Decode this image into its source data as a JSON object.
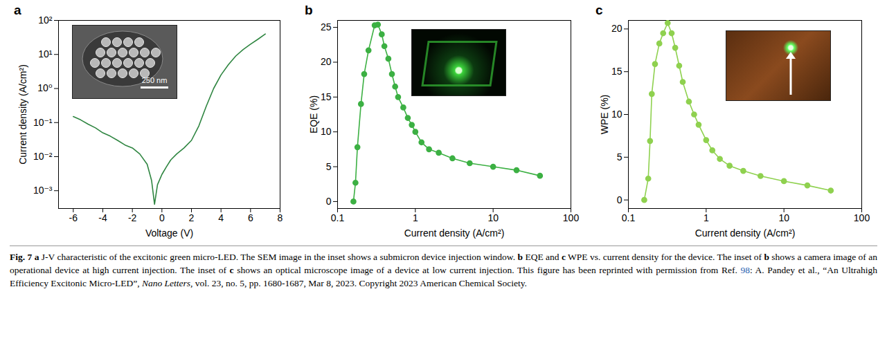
{
  "chart_data": [
    {
      "type": "line",
      "title": "a",
      "x_label": "Voltage (V)",
      "y_label": "Current density (A/cm²)",
      "x": [
        -6,
        -5.5,
        -5,
        -4.5,
        -4,
        -3.5,
        -3,
        -2.5,
        -2,
        -1.5,
        -1,
        -0.7,
        -0.5,
        -0.3,
        0,
        0.3,
        0.6,
        1,
        1.5,
        2,
        2.5,
        3,
        3.5,
        4,
        4.5,
        5,
        5.5,
        6,
        6.5,
        7
      ],
      "values": [
        0.15,
        0.12,
        0.09,
        0.07,
        0.05,
        0.04,
        0.03,
        0.022,
        0.018,
        0.012,
        0.006,
        0.002,
        0.0004,
        0.0015,
        0.003,
        0.005,
        0.008,
        0.012,
        0.018,
        0.03,
        0.08,
        0.3,
        1,
        2.5,
        5,
        9,
        14,
        20,
        28,
        40
      ],
      "color": "#2e8540",
      "line_style": "solid",
      "xlim": [
        -7,
        8
      ],
      "xticks": [
        -6,
        -4,
        -2,
        0,
        2,
        4,
        6,
        8
      ],
      "ylim": [
        0.0003,
        100
      ],
      "yticks": [
        {
          "value": 0.001,
          "label": "10⁻³"
        },
        {
          "value": 0.01,
          "label": "10⁻²"
        },
        {
          "value": 0.1,
          "label": "10⁻¹"
        },
        {
          "value": 1,
          "label": "10⁰"
        },
        {
          "value": 10,
          "label": "10¹"
        },
        {
          "value": 100,
          "label": "10²"
        }
      ],
      "log": "y",
      "grid": false,
      "annotations": [
        {
          "text": "250 nm"
        }
      ]
    },
    {
      "type": "line",
      "title": "b",
      "x_label": "Current density (A/cm²)",
      "y_label": "EQE (%)",
      "x": [
        0.16,
        0.17,
        0.18,
        0.2,
        0.22,
        0.25,
        0.3,
        0.33,
        0.37,
        0.4,
        0.45,
        0.5,
        0.55,
        0.6,
        0.7,
        0.8,
        0.9,
        1,
        1.2,
        1.5,
        2,
        3,
        5,
        10,
        20,
        40
      ],
      "values": [
        0,
        2.7,
        7.8,
        14,
        18.3,
        21.7,
        25.3,
        25.4,
        24,
        22.3,
        20.5,
        18.3,
        16.5,
        15,
        13.5,
        12,
        11,
        10,
        8.5,
        7.5,
        7,
        6.2,
        5.5,
        5,
        4.5,
        3.7
      ],
      "color": "#3cb043",
      "marker": "circle",
      "line_style": "solid",
      "xlim": [
        0.1,
        100
      ],
      "xticks": [
        0.1,
        1,
        10,
        100
      ],
      "ylim": [
        -1,
        26
      ],
      "yticks": [
        0,
        5,
        10,
        15,
        20,
        25
      ],
      "log": "x",
      "grid": false
    },
    {
      "type": "line",
      "title": "c",
      "x_label": "Current density (A/cm²)",
      "y_label": "WPE (%)",
      "x": [
        0.16,
        0.18,
        0.19,
        0.2,
        0.22,
        0.25,
        0.28,
        0.32,
        0.36,
        0.4,
        0.45,
        0.5,
        0.6,
        0.7,
        0.8,
        1,
        1.2,
        1.5,
        2,
        3,
        5,
        10,
        20,
        40
      ],
      "values": [
        0,
        2.5,
        6.9,
        12.4,
        15.9,
        18.3,
        19.5,
        20.7,
        19.5,
        17.8,
        15.7,
        13.8,
        11.5,
        10,
        8.8,
        7,
        5.8,
        4.8,
        4,
        3.4,
        2.8,
        2.2,
        1.7,
        1.1
      ],
      "color": "#8fd14f",
      "marker": "circle",
      "line_style": "solid",
      "xlim": [
        0.1,
        100
      ],
      "xticks": [
        0.1,
        1,
        10,
        100
      ],
      "ylim": [
        -1,
        21
      ],
      "yticks": [
        0,
        5,
        10,
        15,
        20
      ],
      "log": "x",
      "grid": false
    }
  ],
  "caption": [
    {
      "text": "Fig. 7 a",
      "bold": true
    },
    {
      "text": " J-V characteristic of the excitonic green micro-LED. The SEM image in the inset shows a submicron device injection window. "
    },
    {
      "text": "b",
      "bold": true
    },
    {
      "text": " EQE and "
    },
    {
      "text": "c",
      "bold": true
    },
    {
      "text": " WPE vs. current density for the device. The inset of "
    },
    {
      "text": "b",
      "bold": true
    },
    {
      "text": " shows a camera image of an operational device at high current injection. The inset of "
    },
    {
      "text": "c",
      "bold": true
    },
    {
      "text": " shows an optical microscope image of a device at low current injection. This figure has been reprinted with permission from Ref. "
    },
    {
      "text": "98",
      "link": true
    },
    {
      "text": ": A. Pandey et al., “An Ultrahigh Efficiency Excitonic Micro-LED”, "
    },
    {
      "text": "Nano Letters,",
      "italic": true
    },
    {
      "text": " vol. 23, no. 5, pp. 1680-1687, Mar 8, 2023. Copyright 2023 American Chemical Society."
    }
  ]
}
